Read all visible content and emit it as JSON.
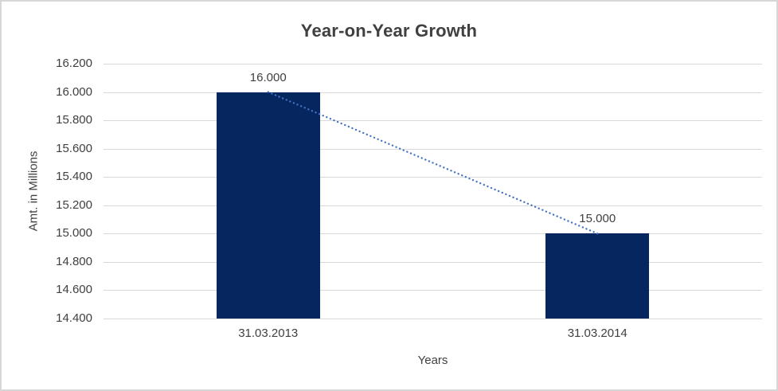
{
  "chart_data": {
    "type": "bar",
    "title": "Year-on-Year Growth",
    "xlabel": "Years",
    "ylabel": "Amt. in Millions",
    "categories": [
      "31.03.2013",
      "31.03.2014"
    ],
    "series": [
      {
        "name": "Amt. in Millions",
        "values": [
          16000,
          15000
        ]
      }
    ],
    "value_labels": [
      "16.000",
      "15.000"
    ],
    "ylim": [
      14400,
      16200
    ],
    "ytick_step": 200,
    "ytick_labels": [
      "16.200",
      "16.000",
      "15.800",
      "15.600",
      "15.400",
      "15.200",
      "15.000",
      "14.800",
      "14.600",
      "14.400"
    ],
    "grid": "horizontal-on",
    "legend": "none",
    "trendline": {
      "style": "dotted",
      "from_value": 16000,
      "to_value": 15000
    }
  },
  "colors": {
    "bar": "#06265F",
    "trend": "#4472C4",
    "grid": "#D9D9D9",
    "text": "#404040",
    "chart_border": "#D7D7D7"
  }
}
